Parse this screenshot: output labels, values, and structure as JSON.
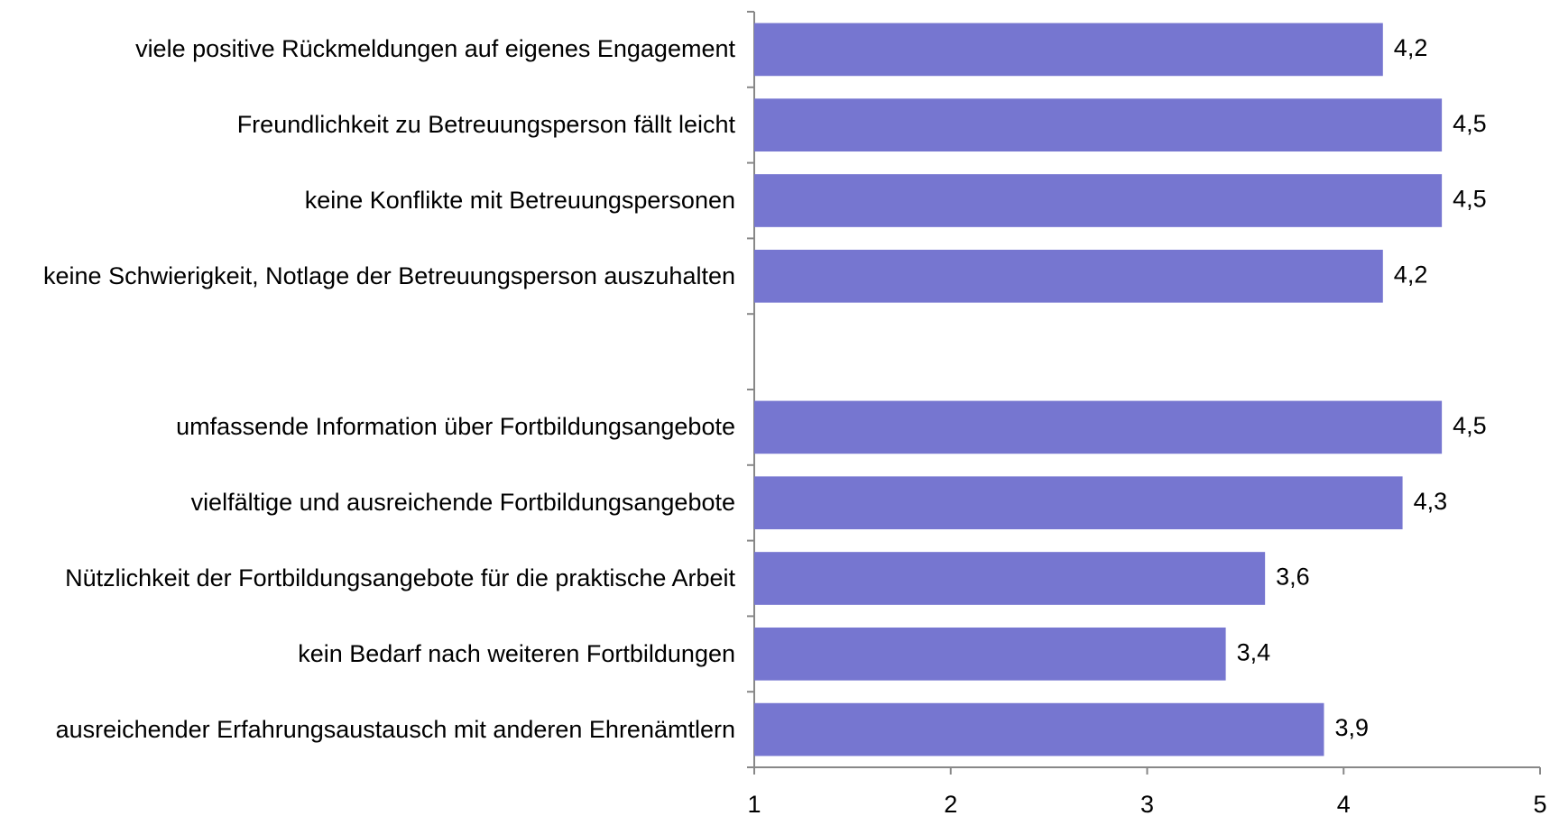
{
  "chart_data": {
    "type": "bar",
    "orientation": "horizontal",
    "categories": [
      "viele positive Rückmeldungen auf eigenes Engagement",
      "Freundlichkeit zu Betreuungsperson fällt leicht",
      "keine Konflikte mit Betreuungspersonen",
      "keine Schwierigkeit, Notlage der Betreuungsperson auszuhalten",
      null,
      "umfassende Information über Fortbildungsangebote",
      "vielfältige und ausreichende Fortbildungsangebote",
      "Nützlichkeit der Fortbildungsangebote für die praktische Arbeit",
      "kein Bedarf nach weiteren Fortbildungen",
      "ausreichender Erfahrungsaustausch mit anderen Ehrenämtlern"
    ],
    "values": [
      4.2,
      4.5,
      4.5,
      4.2,
      null,
      4.5,
      4.3,
      3.6,
      3.4,
      3.9
    ],
    "value_labels": [
      "4,2",
      "4,5",
      "4,5",
      "4,2",
      null,
      "4,5",
      "4,3",
      "3,6",
      "3,4",
      "3,9"
    ],
    "color": "#7676d0",
    "xlim": [
      1,
      5
    ],
    "xticks": [
      1,
      2,
      3,
      4,
      5
    ],
    "grid": false
  }
}
